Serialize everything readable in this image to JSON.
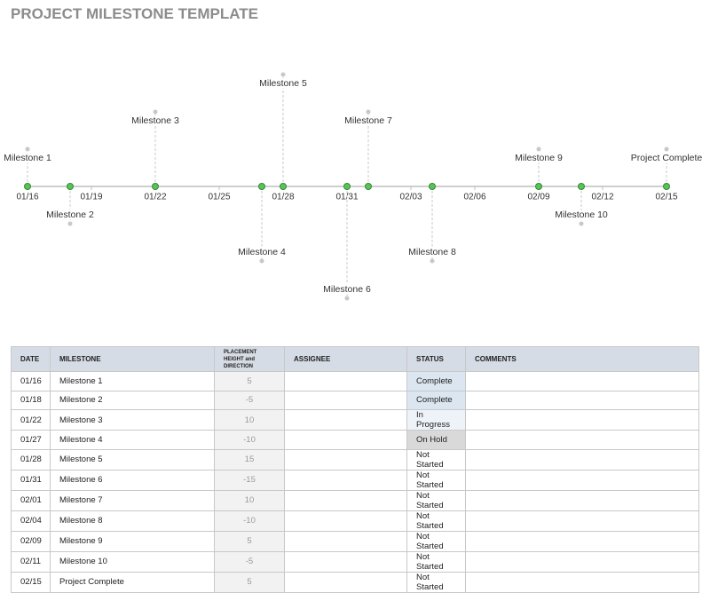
{
  "title": "PROJECT MILESTONE TEMPLATE",
  "chart_data": {
    "type": "timeline",
    "x": [
      "01/16",
      "01/18",
      "01/22",
      "01/27",
      "01/28",
      "01/31",
      "02/01",
      "02/04",
      "02/09",
      "02/11",
      "02/15"
    ],
    "values": [
      5,
      -5,
      10,
      -10,
      15,
      -15,
      10,
      -10,
      5,
      -5,
      5
    ],
    "labels": [
      "Milestone 1",
      "Milestone 2",
      "Milestone 3",
      "Milestone 4",
      "Milestone 5",
      "Milestone 6",
      "Milestone 7",
      "Milestone 8",
      "Milestone 9",
      "Milestone 10",
      "Project Complete"
    ],
    "xlim": [
      "01/16",
      "02/15"
    ],
    "xticks": [
      "01/16",
      "01/19",
      "01/22",
      "01/25",
      "01/28",
      "01/31",
      "02/03",
      "02/06",
      "02/09",
      "02/12",
      "02/15"
    ],
    "color": "#5cc15c"
  },
  "table": {
    "columns": [
      "DATE",
      "MILESTONE",
      "PLACEMENT HEIGHT and DIRECTION",
      "ASSIGNEE",
      "STATUS",
      "COMMENTS"
    ],
    "status": [
      "Complete",
      "Complete",
      "In Progress",
      "On Hold",
      "Not Started",
      "Not Started",
      "Not Started",
      "Not Started",
      "Not Started",
      "Not Started",
      "Not Started"
    ],
    "status_colors": [
      "#dce6f1",
      "#dce6f1",
      "#eef3fa",
      "#d9d9d9",
      "#ffffff",
      "#ffffff",
      "#ffffff",
      "#ffffff",
      "#ffffff",
      "#ffffff",
      "#ffffff"
    ]
  }
}
